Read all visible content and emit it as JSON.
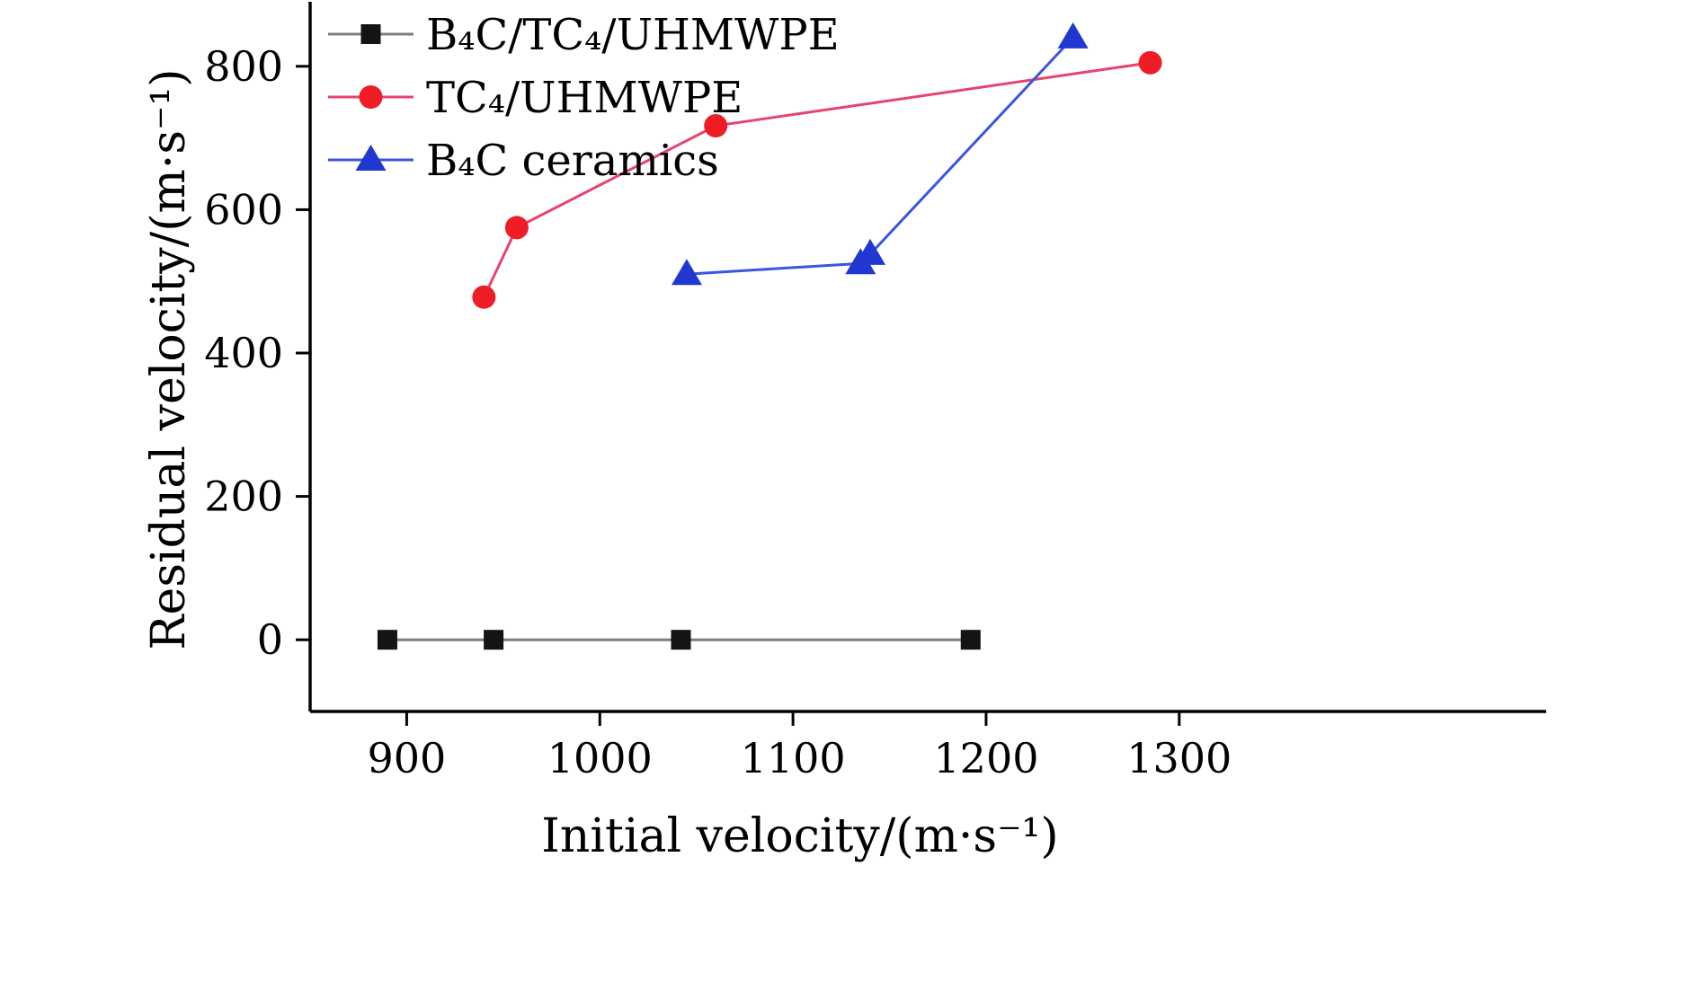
{
  "chart_data": {
    "type": "line",
    "title": "",
    "xlabel": "Initial velocity/(m·s⁻¹)",
    "ylabel": "Residual velocity/(m·s⁻¹)",
    "xlim": [
      850,
      1490
    ],
    "ylim": [
      -100,
      890
    ],
    "xticks": [
      900,
      1000,
      1100,
      1200,
      1300
    ],
    "yticks": [
      0,
      200,
      400,
      600,
      800
    ],
    "grid": false,
    "legend_position": "top-left",
    "axis_color": "#000000",
    "background_color": "#ffffff",
    "series": [
      {
        "name": "B₄C/TC₄/UHMWPE",
        "marker": "square",
        "marker_color": "#141414",
        "line_color": "#7f7f7f",
        "points": [
          [
            890,
            0
          ],
          [
            945,
            0
          ],
          [
            1042,
            0
          ],
          [
            1192,
            0
          ]
        ]
      },
      {
        "name": "TC₄/UHMWPE",
        "marker": "circle",
        "marker_color": "#ee1c25",
        "line_color": "#e8436f",
        "points": [
          [
            940,
            478
          ],
          [
            957,
            575
          ],
          [
            1060,
            717
          ],
          [
            1285,
            805
          ]
        ]
      },
      {
        "name": "B₄C ceramics",
        "marker": "triangle",
        "marker_color": "#2038cf",
        "line_color": "#3a55e0",
        "points": [
          [
            1045,
            510
          ],
          [
            1135,
            525
          ],
          [
            1140,
            538
          ],
          [
            1245,
            840
          ]
        ]
      }
    ]
  }
}
